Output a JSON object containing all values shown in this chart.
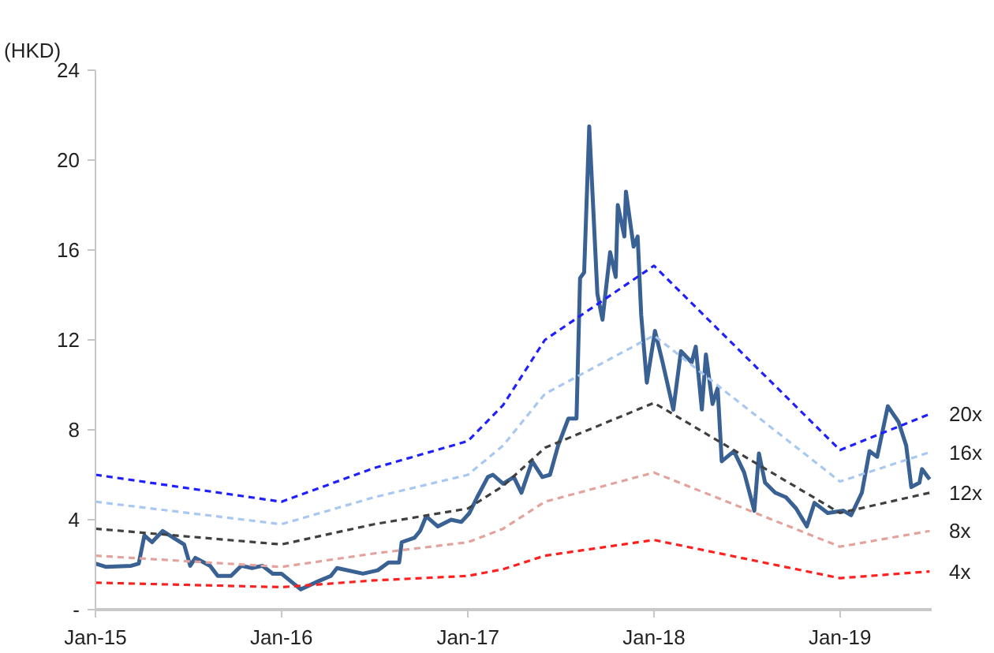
{
  "chart_data": {
    "type": "line",
    "ylabel": "(HKD)",
    "xlim": [
      "2015-01-01",
      "2019-06-30"
    ],
    "xticks": [
      {
        "value": "2015-01-01",
        "label": "Jan-15"
      },
      {
        "value": "2016-01-01",
        "label": "Jan-16"
      },
      {
        "value": "2017-01-01",
        "label": "Jan-17"
      },
      {
        "value": "2018-01-01",
        "label": "Jan-18"
      },
      {
        "value": "2019-01-01",
        "label": "Jan-19"
      }
    ],
    "ylim": [
      0,
      24
    ],
    "yticks": [
      {
        "value": 0,
        "label": "-"
      },
      4,
      8,
      12,
      16,
      20,
      24
    ],
    "grid": false,
    "legend": false,
    "series": [
      {
        "color": "#3a6194",
        "line_style": "solid",
        "x": [
          "2015-01-01",
          "2015-01-22",
          "2015-03-12",
          "2015-03-27",
          "2015-04-07",
          "2015-04-22",
          "2015-05-13",
          "2015-06-03",
          "2015-06-24",
          "2015-07-06",
          "2015-07-16",
          "2015-08-14",
          "2015-08-29",
          "2015-09-24",
          "2015-10-14",
          "2015-11-04",
          "2015-11-25",
          "2015-12-15",
          "2016-01-01",
          "2016-01-20",
          "2016-02-08",
          "2016-03-12",
          "2016-04-07",
          "2016-04-19",
          "2016-06-09",
          "2016-07-08",
          "2016-07-29",
          "2016-08-19",
          "2016-08-24",
          "2016-09-18",
          "2016-09-29",
          "2016-10-11",
          "2016-11-03",
          "2016-11-29",
          "2016-12-19",
          "2017-01-04",
          "2017-01-19",
          "2017-02-09",
          "2017-02-19",
          "2017-03-11",
          "2017-04-01",
          "2017-04-16",
          "2017-05-07",
          "2017-05-27",
          "2017-06-11",
          "2017-06-27",
          "2017-07-17",
          "2017-08-02",
          "2017-08-09",
          "2017-08-17",
          "2017-08-27",
          "2017-09-03",
          "2017-09-12",
          "2017-09-22",
          "2017-10-07",
          "2017-10-18",
          "2017-10-22",
          "2017-11-04",
          "2017-11-07",
          "2017-11-22",
          "2017-11-30",
          "2017-12-07",
          "2017-12-18",
          "2018-01-03",
          "2018-01-18",
          "2018-02-08",
          "2018-02-23",
          "2018-03-16",
          "2018-03-24",
          "2018-04-05",
          "2018-04-13",
          "2018-04-26",
          "2018-05-06",
          "2018-05-14",
          "2018-06-07",
          "2018-06-27",
          "2018-07-17",
          "2018-07-26",
          "2018-08-07",
          "2018-08-27",
          "2018-09-17",
          "2018-10-07",
          "2018-10-28",
          "2018-11-12",
          "2018-12-08",
          "2019-01-08",
          "2019-01-23",
          "2019-02-13",
          "2019-02-28",
          "2019-03-15",
          "2019-04-05",
          "2019-04-26",
          "2019-05-11",
          "2019-05-21",
          "2019-06-06",
          "2019-06-11",
          "2019-06-26"
        ],
        "values": [
          2.05,
          1.9,
          1.95,
          2.05,
          3.3,
          3.0,
          3.5,
          3.2,
          2.9,
          1.95,
          2.3,
          1.95,
          1.5,
          1.5,
          1.95,
          1.85,
          1.95,
          1.6,
          1.6,
          1.25,
          0.9,
          1.25,
          1.5,
          1.85,
          1.6,
          1.75,
          2.1,
          2.1,
          3.0,
          3.2,
          3.5,
          4.15,
          3.7,
          4.0,
          3.9,
          4.3,
          5.0,
          5.9,
          6.0,
          5.6,
          5.9,
          5.2,
          6.6,
          5.9,
          6.0,
          7.3,
          8.5,
          8.5,
          14.75,
          15.0,
          21.5,
          18.25,
          14.05,
          12.9,
          15.9,
          14.8,
          18.0,
          16.6,
          18.6,
          16.15,
          16.6,
          13.1,
          10.1,
          12.4,
          11.0,
          8.9,
          11.5,
          11.0,
          11.7,
          8.9,
          11.35,
          9.15,
          9.85,
          6.6,
          7.05,
          6.1,
          4.4,
          6.95,
          5.65,
          5.2,
          5.0,
          4.5,
          3.7,
          4.75,
          4.3,
          4.4,
          4.2,
          5.2,
          7.05,
          6.8,
          9.05,
          8.35,
          7.3,
          5.45,
          5.65,
          6.25,
          5.8
        ]
      },
      {
        "name": "20x",
        "color": "#1f1fff",
        "line_style": "dashed",
        "x": [
          "2015-01-01",
          "2016-01-01",
          "2016-07-01",
          "2017-01-01",
          "2017-03-11",
          "2017-06-01",
          "2018-01-01",
          "2019-01-01",
          "2019-06-26"
        ],
        "values": [
          6.0,
          4.8,
          6.3,
          7.5,
          9.1,
          12.0,
          15.3,
          7.1,
          8.7
        ]
      },
      {
        "name": "16x",
        "color": "#a9c8f0",
        "line_style": "dashed",
        "x": [
          "2015-01-01",
          "2016-01-01",
          "2016-07-01",
          "2017-01-01",
          "2017-03-11",
          "2017-06-01",
          "2018-01-01",
          "2019-01-01",
          "2019-06-26"
        ],
        "values": [
          4.8,
          3.8,
          5.0,
          6.0,
          7.3,
          9.6,
          12.2,
          5.7,
          7.0
        ]
      },
      {
        "name": "12x",
        "color": "#404040",
        "line_style": "dashed",
        "x": [
          "2015-01-01",
          "2016-01-01",
          "2016-07-01",
          "2017-01-01",
          "2017-03-11",
          "2017-06-01",
          "2018-01-01",
          "2019-01-01",
          "2019-06-26"
        ],
        "values": [
          3.6,
          2.9,
          3.8,
          4.5,
          5.5,
          7.2,
          9.2,
          4.3,
          5.2
        ]
      },
      {
        "name": "8x",
        "color": "#e3a39d",
        "line_style": "dashed",
        "x": [
          "2015-01-01",
          "2016-01-01",
          "2016-07-01",
          "2017-01-01",
          "2017-03-11",
          "2017-06-01",
          "2018-01-01",
          "2019-01-01",
          "2019-06-26"
        ],
        "values": [
          2.4,
          1.9,
          2.5,
          3.0,
          3.6,
          4.8,
          6.1,
          2.8,
          3.5
        ]
      },
      {
        "name": "4x",
        "color": "#ff2020",
        "line_style": "dashed",
        "x": [
          "2015-01-01",
          "2016-01-01",
          "2016-07-01",
          "2017-01-01",
          "2017-03-11",
          "2017-06-01",
          "2018-01-01",
          "2019-01-01",
          "2019-06-26"
        ],
        "values": [
          1.2,
          1.0,
          1.3,
          1.5,
          1.8,
          2.4,
          3.1,
          1.4,
          1.7
        ]
      }
    ]
  }
}
